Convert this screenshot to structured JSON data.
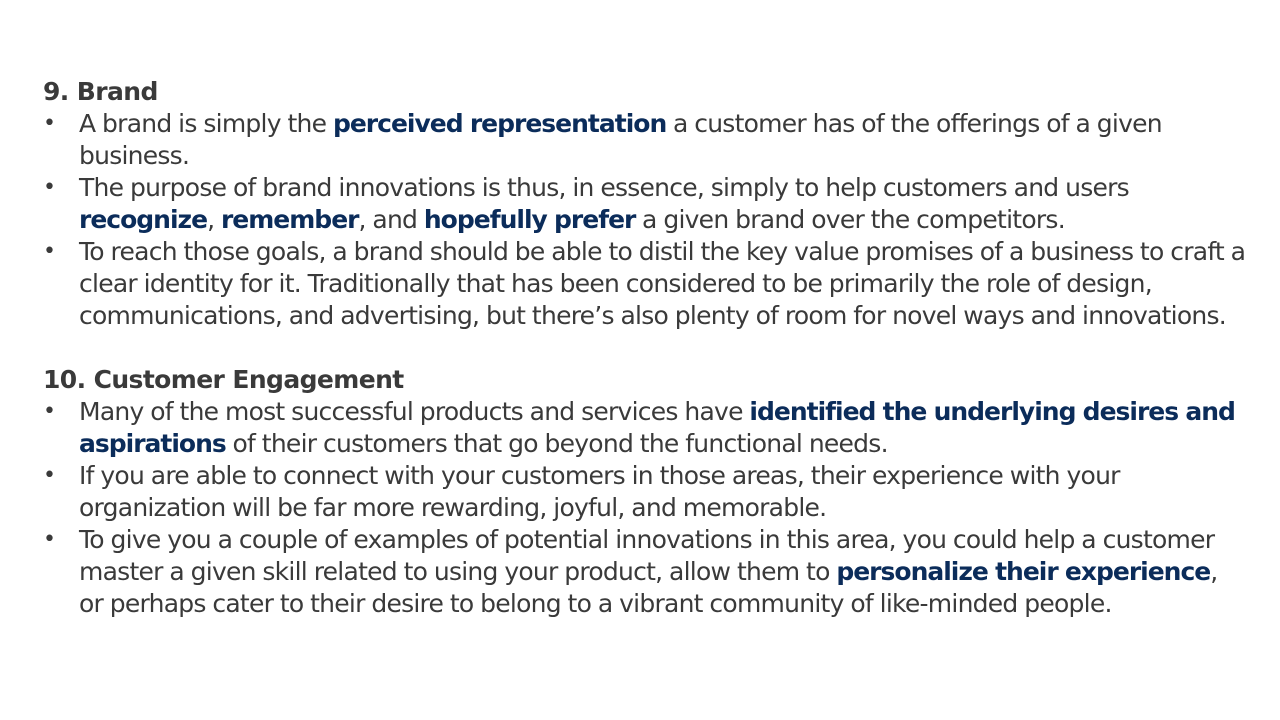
{
  "sections": [
    {
      "heading": "9. Brand",
      "bullets": [
        [
          {
            "text": "A brand is simply the "
          },
          {
            "text": "perceived representation",
            "highlight": true
          },
          {
            "text": " a customer has of the offerings of a given business."
          }
        ],
        [
          {
            "text": "The purpose of brand innovations is thus, in essence, simply to help customers and users "
          },
          {
            "text": "recognize",
            "highlight": true
          },
          {
            "text": ", "
          },
          {
            "text": "remember",
            "highlight": true
          },
          {
            "text": ", and "
          },
          {
            "text": "hopefully prefer",
            "highlight": true
          },
          {
            "text": " a given brand over the competitors."
          }
        ],
        [
          {
            "text": "To reach those goals, a brand should be able to distil the key value promises of a business to craft a clear identity for it. Traditionally that has been considered to be primarily the role of design, communications, and advertising, but there’s also plenty of room for novel ways and innovations."
          }
        ]
      ]
    },
    {
      "heading": "10. Customer Engagement",
      "bullets": [
        [
          {
            "text": "Many of the most successful products and services have "
          },
          {
            "text": "identified the underlying desires and aspirations",
            "highlight": true
          },
          {
            "text": " of their customers that go beyond the functional needs."
          }
        ],
        [
          {
            "text": "If you are able to connect with your customers in those areas, their experience with your organization will be far more rewarding, joyful, and memorable."
          }
        ],
        [
          {
            "text": "To give you a couple of examples of potential innovations in this area, you could help a customer master a given skill related to using your product, allow them to "
          },
          {
            "text": "personalize their experience",
            "highlight": true
          },
          {
            "text": ", or perhaps cater to their desire to belong to a vibrant community of like-minded people."
          }
        ]
      ]
    }
  ],
  "bullet_symbol": "•",
  "colors": {
    "text": "#3a3a3a",
    "highlight": "#0b2c5a",
    "background": "#ffffff"
  }
}
